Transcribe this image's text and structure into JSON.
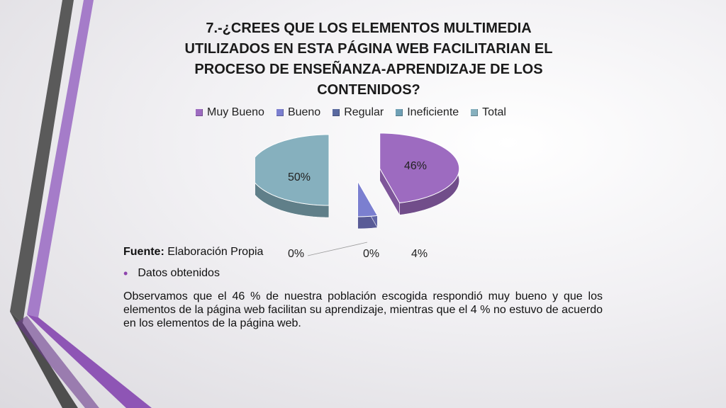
{
  "chart_data": {
    "type": "pie",
    "title": "7.-¿CREES QUE LOS ELEMENTOS MULTIMEDIA UTILIZADOS EN ESTA PÁGINA WEB FACILITARIAN EL PROCESO DE ENSEÑANZA-APRENDIZAJE DE LOS CONTENIDOS?",
    "title_lines": [
      "7.-¿CREES QUE LOS ELEMENTOS MULTIMEDIA",
      "UTILIZADOS EN ESTA PÁGINA WEB FACILITARIAN EL",
      "PROCESO DE ENSEÑANZA-APRENDIZAJE DE LOS",
      "CONTENIDOS?"
    ],
    "legend_position": "top",
    "categories": [
      "Muy Bueno",
      "Bueno",
      "Regular",
      "Ineficiente",
      "Total"
    ],
    "values": [
      46,
      4,
      0,
      0,
      50
    ],
    "labels": [
      "46%",
      "4%",
      "0%",
      "0%",
      "50%"
    ],
    "colors": [
      "#9d6bc0",
      "#7b7fd0",
      "#5a6aa0",
      "#6fa0b5",
      "#86b0be"
    ]
  },
  "source": {
    "label": "Fuente:",
    "text": "Elaboración Propia"
  },
  "bullet": {
    "text": "Datos obtenidos"
  },
  "paragraph": "Observamos que el 46 % de nuestra población escogida respondió muy bueno y que los elementos de la página web facilitan su aprendizaje, mientras que el 4 % no estuvo de acuerdo en los elementos de la página web."
}
